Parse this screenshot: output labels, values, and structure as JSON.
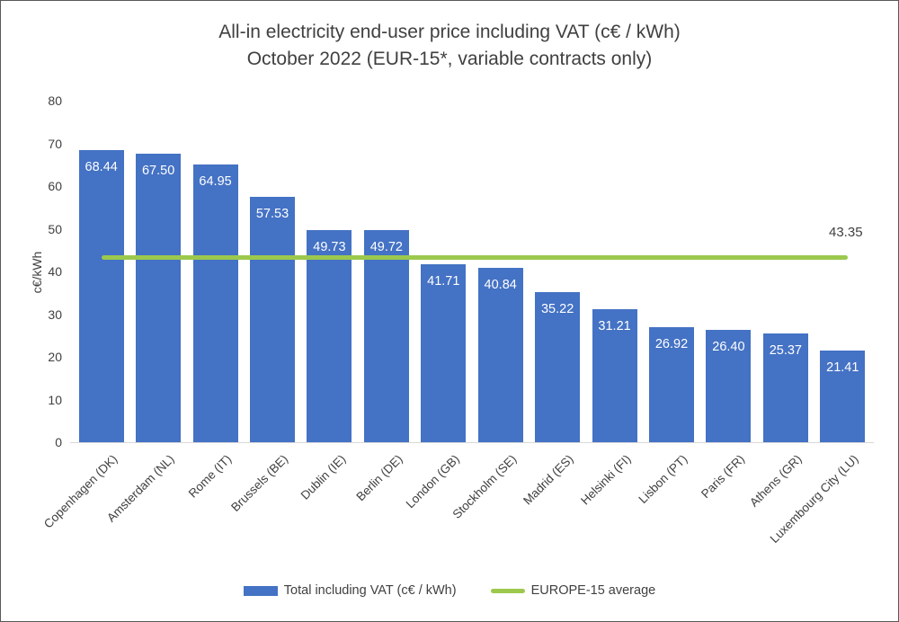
{
  "chart_data": {
    "type": "bar",
    "title_line1": "All-in electricity end-user price including VAT (c€ / kWh)",
    "title_line2": "October 2022 (EUR-15*, variable contracts only)",
    "ylabel": "c€/kWh",
    "ylim": [
      0,
      80
    ],
    "yticks": [
      "0",
      "10",
      "20",
      "30",
      "40",
      "50",
      "60",
      "70",
      "80"
    ],
    "grid": false,
    "legend_position": "bottom",
    "categories": [
      "Copenhagen (DK)",
      "Amsterdam (NL)",
      "Rome (IT)",
      "Brussels (BE)",
      "Dublin (IE)",
      "Berlin (DE)",
      "London (GB)",
      "Stockholm (SE)",
      "Madrid (ES)",
      "Helsinki (FI)",
      "Lisbon (PT)",
      "Paris (FR)",
      "Athens (GR)",
      "Luxembourg City (LU)"
    ],
    "series": [
      {
        "name": "Total including VAT (c€ / kWh)",
        "type": "bar",
        "color": "#4472C4",
        "values": [
          68.44,
          67.5,
          64.95,
          57.53,
          49.73,
          49.72,
          41.71,
          40.84,
          35.22,
          31.21,
          26.92,
          26.4,
          25.37,
          21.41
        ],
        "value_labels": [
          "68.44",
          "67.50",
          "64.95",
          "57.53",
          "49.73",
          "49.72",
          "41.71",
          "40.84",
          "35.22",
          "31.21",
          "26.92",
          "26.40",
          "25.37",
          "21.41"
        ]
      },
      {
        "name": "EUROPE-15 average",
        "type": "line",
        "color": "#9CC94D",
        "value": 43.35,
        "value_label": "43.35"
      }
    ]
  },
  "colors": {
    "bar": "#4472C4",
    "average_line": "#9CC94D",
    "title_text": "#404040",
    "axis_text": "#404040",
    "data_label_text": "#FFFFFF",
    "axis_line": "#D9D9D9",
    "frame_border": "#595959"
  }
}
